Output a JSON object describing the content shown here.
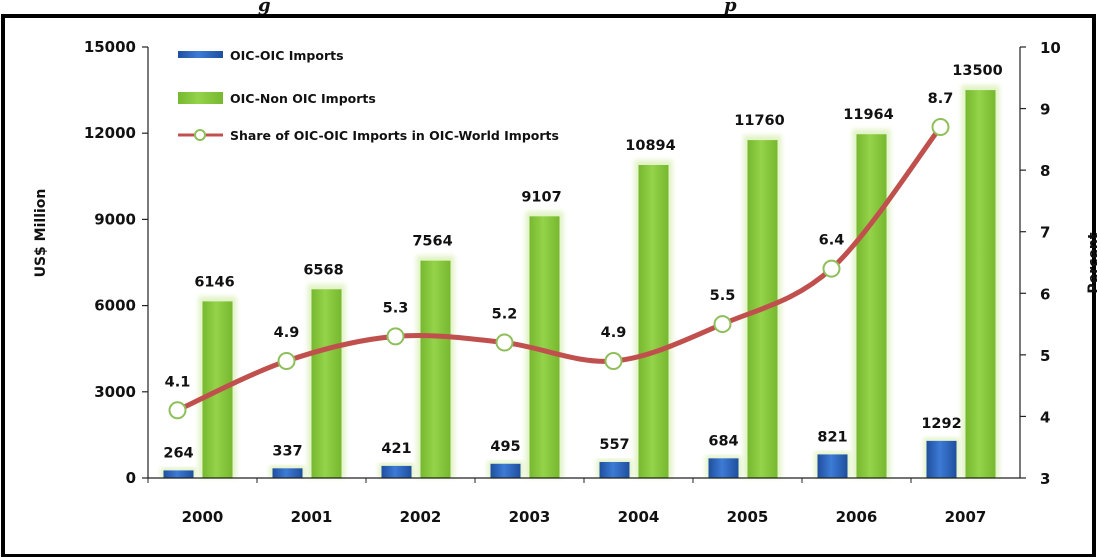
{
  "chart_data": {
    "type": "bar",
    "title_fragment": "g",
    "title_fragment_2": "p",
    "categories": [
      "2000",
      "2001",
      "2002",
      "2003",
      "2004",
      "2005",
      "2006",
      "2007"
    ],
    "series": [
      {
        "name": "OIC-OIC Imports",
        "kind": "bar",
        "axis": "left",
        "color": "#2e64b8",
        "values": [
          264,
          337,
          421,
          495,
          557,
          684,
          821,
          1292
        ]
      },
      {
        "name": "OIC-Non OIC Imports",
        "kind": "bar",
        "axis": "left",
        "color": "#84c63c",
        "values": [
          6146,
          6568,
          7564,
          9107,
          10894,
          11760,
          11964,
          13500
        ]
      },
      {
        "name": "Share of OIC-OIC Imports in OIC-World  Imports",
        "kind": "line",
        "axis": "right",
        "color": "#c0504d",
        "values": [
          4.1,
          4.9,
          5.3,
          5.2,
          4.9,
          5.5,
          6.4,
          8.7
        ]
      }
    ],
    "ylabel": "US$ Million",
    "y2label": "Percent",
    "ylim": [
      0,
      15000
    ],
    "yticks": [
      0,
      3000,
      6000,
      9000,
      12000,
      15000
    ],
    "y2lim": [
      3,
      10
    ],
    "y2ticks": [
      3,
      4,
      5,
      6,
      7,
      8,
      9,
      10
    ],
    "legend_position": "top-left",
    "grid": false
  }
}
